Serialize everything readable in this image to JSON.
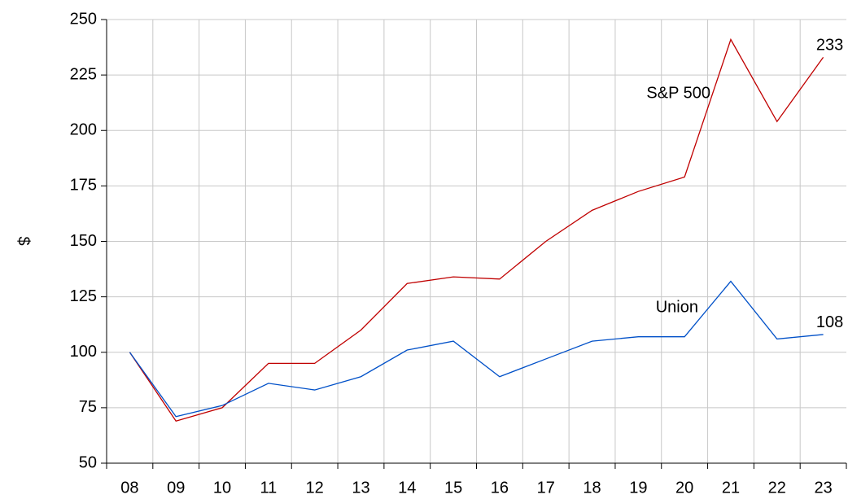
{
  "chart_data": {
    "type": "line",
    "y_label": "$",
    "categories": [
      "08",
      "09",
      "10",
      "11",
      "12",
      "13",
      "14",
      "15",
      "16",
      "17",
      "18",
      "19",
      "20",
      "21",
      "22",
      "23"
    ],
    "series": [
      {
        "name": "S&P 500",
        "color": "#c00000",
        "values": [
          100,
          69,
          75,
          95,
          95,
          110,
          131,
          134,
          133,
          150,
          164,
          172.5,
          179,
          241,
          204,
          233
        ]
      },
      {
        "name": "Union",
        "color": "#0050c8",
        "values": [
          100,
          71,
          76,
          86,
          83,
          89,
          101,
          105,
          89,
          97,
          105,
          107,
          107,
          132,
          106,
          108
        ]
      }
    ],
    "ylim": [
      50,
      250
    ],
    "yticks": [
      50,
      75,
      100,
      125,
      150,
      175,
      200,
      225,
      250
    ],
    "grid": true
  }
}
